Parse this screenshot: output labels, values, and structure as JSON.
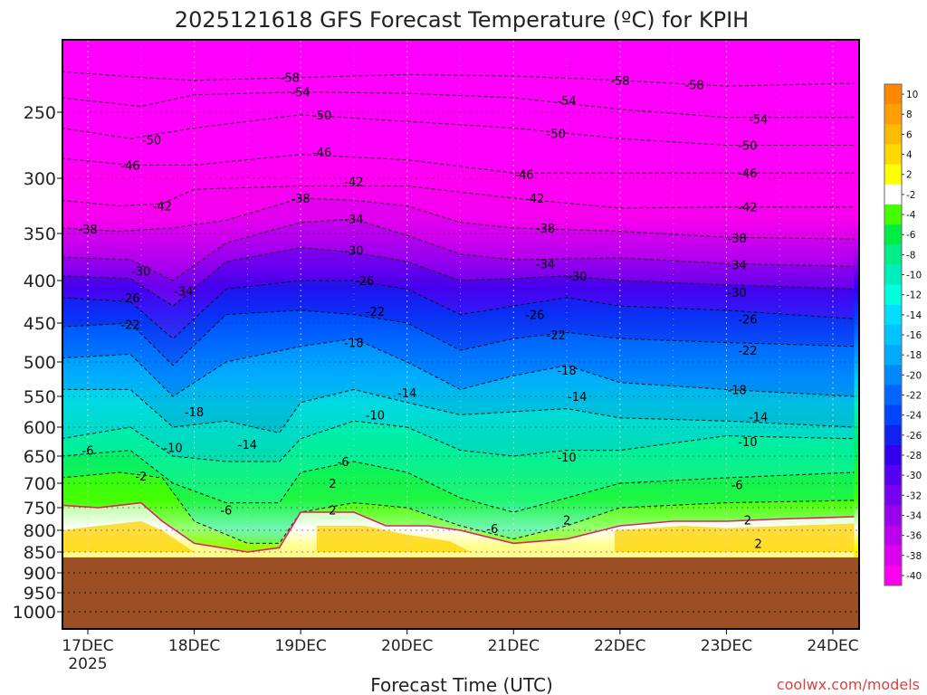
{
  "chart_data": {
    "type": "heatmap",
    "title": "2025121618 GFS Forecast Temperature (ºC) for KPIH",
    "xlabel": "Forecast Time (UTC)",
    "ylabel": "",
    "x_ticks": [
      "17DEC",
      "18DEC",
      "19DEC",
      "20DEC",
      "21DEC",
      "22DEC",
      "23DEC",
      "24DEC"
    ],
    "x_tick_sublabel": "2025",
    "x_unit": "day (DEC 2025)",
    "x_range": [
      16.75,
      24.2
    ],
    "y_ticks": [
      250,
      300,
      350,
      400,
      450,
      500,
      550,
      600,
      650,
      700,
      750,
      800,
      850,
      900,
      950,
      1000
    ],
    "y_unit": "hPa",
    "y_range": [
      200,
      1050
    ],
    "grid": true,
    "colorbar": {
      "unit": "°C",
      "ticks": [
        10,
        8,
        6,
        4,
        2,
        -2,
        -4,
        -6,
        -8,
        -10,
        -12,
        -14,
        -16,
        -18,
        -20,
        -22,
        -24,
        -26,
        -28,
        -30,
        -32,
        -34,
        -36,
        -38,
        -40
      ],
      "colors": [
        "#ff8800",
        "#ffa000",
        "#ffbb00",
        "#ffd800",
        "#ffff00",
        "#ffffff",
        "#44ff00",
        "#00ee44",
        "#00ee88",
        "#00eebb",
        "#00ffdd",
        "#00ddff",
        "#00c4ff",
        "#00aaff",
        "#0088ff",
        "#0066ff",
        "#0044ff",
        "#1122ee",
        "#3300ee",
        "#5500ee",
        "#7700ee",
        "#9900ee",
        "#bb00ee",
        "#dd00ee",
        "#ff00ee"
      ]
    },
    "isotherms": [
      {
        "value": -58,
        "label": "-58",
        "points": [
          [
            16.75,
            222
          ],
          [
            17.5,
            226
          ],
          [
            18.0,
            228
          ],
          [
            19.0,
            226
          ],
          [
            20.0,
            224
          ],
          [
            21.0,
            225
          ],
          [
            22.0,
            228
          ],
          [
            23.0,
            232
          ],
          [
            24.2,
            230
          ]
        ],
        "labels_at": [
          [
            18.9,
            226
          ],
          [
            22.0,
            228
          ],
          [
            22.7,
            231
          ]
        ]
      },
      {
        "value": -54,
        "label": "-54",
        "points": [
          [
            16.75,
            240
          ],
          [
            17.5,
            246
          ],
          [
            18.0,
            238
          ],
          [
            19.0,
            236
          ],
          [
            20.0,
            237
          ],
          [
            21.0,
            240
          ],
          [
            22.0,
            248
          ],
          [
            23.0,
            254
          ],
          [
            24.2,
            254
          ]
        ],
        "labels_at": [
          [
            19.0,
            236
          ],
          [
            21.5,
            242
          ],
          [
            23.3,
            255
          ]
        ]
      },
      {
        "value": -50,
        "label": "-50",
        "points": [
          [
            16.75,
            262
          ],
          [
            17.4,
            270
          ],
          [
            18.0,
            262
          ],
          [
            19.0,
            252
          ],
          [
            20.0,
            257
          ],
          [
            21.0,
            262
          ],
          [
            22.0,
            270
          ],
          [
            23.0,
            275
          ],
          [
            24.2,
            275
          ]
        ],
        "labels_at": [
          [
            17.6,
            271
          ],
          [
            19.2,
            252
          ],
          [
            21.4,
            266
          ],
          [
            23.2,
            275
          ]
        ]
      },
      {
        "value": -46,
        "label": "-46",
        "points": [
          [
            16.75,
            285
          ],
          [
            17.4,
            290
          ],
          [
            18.0,
            290
          ],
          [
            19.0,
            282
          ],
          [
            20.0,
            286
          ],
          [
            21.0,
            296
          ],
          [
            22.0,
            296
          ],
          [
            23.0,
            296
          ],
          [
            24.2,
            296
          ]
        ],
        "labels_at": [
          [
            17.4,
            290
          ],
          [
            19.2,
            280
          ],
          [
            21.1,
            297
          ],
          [
            23.2,
            296
          ]
        ]
      },
      {
        "value": -42,
        "label": "-42",
        "points": [
          [
            16.75,
            320
          ],
          [
            17.3,
            325
          ],
          [
            17.7,
            323
          ],
          [
            18.0,
            310
          ],
          [
            19.0,
            307
          ],
          [
            20.0,
            307
          ],
          [
            21.0,
            318
          ],
          [
            22.0,
            327
          ],
          [
            23.0,
            326
          ],
          [
            24.2,
            326
          ]
        ],
        "labels_at": [
          [
            17.7,
            325
          ],
          [
            19.5,
            303
          ],
          [
            21.2,
            318
          ],
          [
            23.2,
            326
          ]
        ]
      },
      {
        "value": -38,
        "label": "-38",
        "points": [
          [
            16.75,
            345
          ],
          [
            17.3,
            348
          ],
          [
            17.8,
            345
          ],
          [
            18.3,
            338
          ],
          [
            19.0,
            318
          ],
          [
            19.5,
            320
          ],
          [
            20.0,
            325
          ],
          [
            20.5,
            340
          ],
          [
            21.0,
            345
          ],
          [
            22.0,
            348
          ],
          [
            23.0,
            354
          ],
          [
            24.2,
            356
          ]
        ],
        "labels_at": [
          [
            17.0,
            346
          ],
          [
            19.0,
            318
          ],
          [
            21.3,
            345
          ],
          [
            23.1,
            355
          ]
        ]
      },
      {
        "value": -34,
        "label": "-34",
        "points": [
          [
            16.75,
            375
          ],
          [
            17.4,
            378
          ],
          [
            17.8,
            400
          ],
          [
            18.3,
            360
          ],
          [
            19.0,
            340
          ],
          [
            19.5,
            337
          ],
          [
            20.0,
            352
          ],
          [
            20.5,
            372
          ],
          [
            21.0,
            378
          ],
          [
            22.0,
            376
          ],
          [
            23.0,
            382
          ],
          [
            24.2,
            385
          ]
        ],
        "labels_at": [
          [
            17.9,
            412
          ],
          [
            19.5,
            337
          ],
          [
            21.3,
            382
          ],
          [
            23.1,
            383
          ]
        ]
      },
      {
        "value": -30,
        "label": "-30",
        "points": [
          [
            16.75,
            395
          ],
          [
            17.4,
            398
          ],
          [
            17.8,
            430
          ],
          [
            18.3,
            380
          ],
          [
            19.0,
            365
          ],
          [
            19.5,
            370
          ],
          [
            20.0,
            380
          ],
          [
            20.5,
            400
          ],
          [
            21.0,
            398
          ],
          [
            21.5,
            395
          ],
          [
            22.0,
            400
          ],
          [
            23.0,
            405
          ],
          [
            24.2,
            410
          ]
        ],
        "labels_at": [
          [
            17.5,
            390
          ],
          [
            19.5,
            368
          ],
          [
            21.6,
            395
          ],
          [
            23.1,
            414
          ]
        ]
      },
      {
        "value": -26,
        "label": "-26",
        "points": [
          [
            16.75,
            420
          ],
          [
            17.4,
            425
          ],
          [
            17.8,
            470
          ],
          [
            18.3,
            410
          ],
          [
            19.0,
            400
          ],
          [
            19.5,
            400
          ],
          [
            20.0,
            410
          ],
          [
            20.5,
            440
          ],
          [
            21.0,
            430
          ],
          [
            21.5,
            420
          ],
          [
            22.0,
            430
          ],
          [
            23.0,
            435
          ],
          [
            24.2,
            445
          ]
        ],
        "labels_at": [
          [
            17.4,
            420
          ],
          [
            19.6,
            400
          ],
          [
            21.2,
            440
          ],
          [
            23.2,
            445
          ]
        ]
      },
      {
        "value": -22,
        "label": "-22",
        "points": [
          [
            16.75,
            455
          ],
          [
            17.4,
            450
          ],
          [
            17.8,
            505
          ],
          [
            18.3,
            440
          ],
          [
            19.0,
            435
          ],
          [
            19.5,
            440
          ],
          [
            20.0,
            450
          ],
          [
            20.5,
            485
          ],
          [
            21.0,
            470
          ],
          [
            21.5,
            462
          ],
          [
            22.0,
            470
          ],
          [
            23.0,
            475
          ],
          [
            24.2,
            480
          ]
        ],
        "labels_at": [
          [
            17.4,
            452
          ],
          [
            19.7,
            436
          ],
          [
            21.4,
            465
          ],
          [
            23.2,
            485
          ]
        ]
      },
      {
        "value": -18,
        "label": "-18",
        "points": [
          [
            16.75,
            495
          ],
          [
            17.4,
            490
          ],
          [
            17.8,
            550
          ],
          [
            18.3,
            500
          ],
          [
            19.0,
            480
          ],
          [
            19.5,
            470
          ],
          [
            20.0,
            500
          ],
          [
            20.5,
            540
          ],
          [
            21.0,
            520
          ],
          [
            21.5,
            505
          ],
          [
            22.0,
            530
          ],
          [
            23.0,
            540
          ],
          [
            24.2,
            550
          ]
        ],
        "labels_at": [
          [
            18.0,
            575
          ],
          [
            19.5,
            475
          ],
          [
            21.5,
            512
          ],
          [
            23.1,
            540
          ]
        ]
      },
      {
        "value": -14,
        "label": "-14",
        "points": [
          [
            16.75,
            540
          ],
          [
            17.4,
            540
          ],
          [
            17.8,
            600
          ],
          [
            18.3,
            590
          ],
          [
            18.8,
            610
          ],
          [
            19.0,
            560
          ],
          [
            19.5,
            540
          ],
          [
            20.0,
            560
          ],
          [
            20.5,
            580
          ],
          [
            21.0,
            575
          ],
          [
            21.5,
            570
          ],
          [
            22.0,
            585
          ],
          [
            23.0,
            590
          ],
          [
            24.2,
            600
          ]
        ],
        "labels_at": [
          [
            18.5,
            630
          ],
          [
            20.0,
            545
          ],
          [
            21.6,
            550
          ],
          [
            23.3,
            583
          ]
        ]
      },
      {
        "value": -10,
        "label": "-10",
        "points": [
          [
            16.75,
            620
          ],
          [
            17.4,
            600
          ],
          [
            17.8,
            650
          ],
          [
            18.3,
            660
          ],
          [
            18.8,
            660
          ],
          [
            19.0,
            620
          ],
          [
            19.5,
            590
          ],
          [
            20.0,
            600
          ],
          [
            20.5,
            640
          ],
          [
            21.0,
            650
          ],
          [
            21.5,
            640
          ],
          [
            22.0,
            640
          ],
          [
            23.0,
            615
          ],
          [
            24.2,
            620
          ]
        ],
        "labels_at": [
          [
            17.8,
            635
          ],
          [
            19.7,
            580
          ],
          [
            21.5,
            652
          ],
          [
            23.2,
            625
          ]
        ]
      },
      {
        "value": -6,
        "label": "-6",
        "points": [
          [
            16.75,
            650
          ],
          [
            17.4,
            640
          ],
          [
            17.8,
            700
          ],
          [
            18.3,
            740
          ],
          [
            18.8,
            740
          ],
          [
            19.0,
            680
          ],
          [
            19.5,
            660
          ],
          [
            20.0,
            680
          ],
          [
            20.5,
            730
          ],
          [
            21.0,
            760
          ],
          [
            21.5,
            730
          ],
          [
            22.0,
            700
          ],
          [
            23.0,
            690
          ],
          [
            24.2,
            680
          ]
        ],
        "labels_at": [
          [
            17.0,
            640
          ],
          [
            18.3,
            755
          ],
          [
            19.4,
            660
          ],
          [
            20.8,
            796
          ],
          [
            23.1,
            703
          ]
        ]
      },
      {
        "value": -2,
        "label": "-2",
        "points": [
          [
            16.75,
            690
          ],
          [
            17.3,
            680
          ],
          [
            17.7,
            690
          ],
          [
            18.0,
            780
          ],
          [
            18.5,
            830
          ],
          [
            18.8,
            830
          ],
          [
            19.0,
            760
          ],
          [
            19.5,
            740
          ],
          [
            20.0,
            750
          ],
          [
            20.5,
            790
          ],
          [
            21.0,
            820
          ],
          [
            21.5,
            790
          ],
          [
            22.0,
            750
          ],
          [
            23.0,
            740
          ],
          [
            24.2,
            735
          ]
        ],
        "labels_at": [
          [
            17.5,
            687
          ]
        ]
      },
      {
        "value": 2,
        "label": "2",
        "points": [
          [
            16.75,
            745
          ],
          [
            17.1,
            750
          ],
          [
            17.5,
            740
          ],
          [
            17.7,
            780
          ],
          [
            18.0,
            830
          ],
          [
            18.5,
            850
          ],
          [
            18.8,
            840
          ],
          [
            19.0,
            760
          ],
          [
            19.5,
            760
          ],
          [
            19.8,
            790
          ],
          [
            20.2,
            790
          ],
          [
            20.5,
            800
          ],
          [
            21.0,
            830
          ],
          [
            21.5,
            820
          ],
          [
            22.0,
            790
          ],
          [
            22.5,
            780
          ],
          [
            23.0,
            780
          ],
          [
            23.5,
            775
          ],
          [
            24.2,
            770
          ]
        ],
        "labels_at": [
          [
            19.3,
            700
          ],
          [
            19.3,
            755
          ],
          [
            21.5,
            777
          ],
          [
            23.2,
            777
          ],
          [
            23.3,
            830
          ]
        ]
      }
    ]
  },
  "footer": {
    "credit": "coolwx.com/models"
  }
}
